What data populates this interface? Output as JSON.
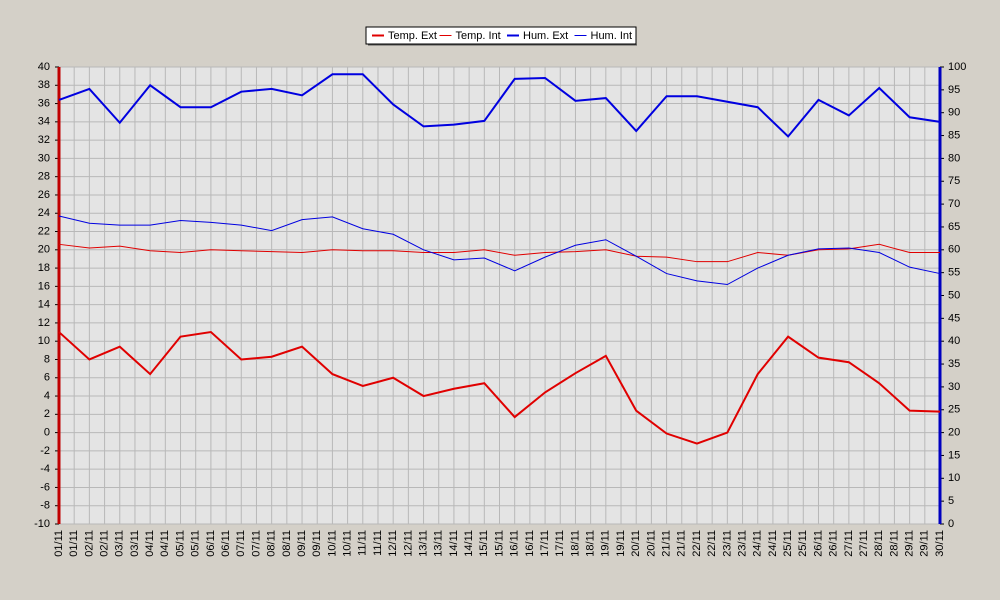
{
  "chart_data": {
    "type": "line",
    "categories": [
      "01/11",
      "02/11",
      "03/11",
      "04/11",
      "05/11",
      "06/11",
      "07/11",
      "08/11",
      "09/11",
      "10/11",
      "11/11",
      "12/11",
      "13/11",
      "14/11",
      "15/11",
      "16/11",
      "17/11",
      "18/11",
      "19/11",
      "20/11",
      "21/11",
      "22/11",
      "23/11",
      "24/11",
      "25/11",
      "26/11",
      "27/11",
      "28/11",
      "29/11",
      "30/11"
    ],
    "xtick_labels": [
      "01/11",
      "01/11",
      "02/11",
      "02/11",
      "03/11",
      "03/11",
      "04/11",
      "04/11",
      "05/11",
      "05/11",
      "06/11",
      "06/11",
      "07/11",
      "07/11",
      "08/11",
      "08/11",
      "09/11",
      "09/11",
      "10/11",
      "10/11",
      "11/11",
      "11/11",
      "12/11",
      "12/11",
      "13/11",
      "13/11",
      "14/11",
      "14/11",
      "15/11",
      "15/11",
      "16/11",
      "16/11",
      "17/11",
      "17/11",
      "18/11",
      "18/11",
      "19/11",
      "19/11",
      "20/11",
      "20/11",
      "21/11",
      "21/11",
      "22/11",
      "22/11",
      "23/11",
      "23/11",
      "24/11",
      "24/11",
      "25/11",
      "25/11",
      "26/11",
      "26/11",
      "27/11",
      "27/11",
      "28/11",
      "28/11",
      "29/11",
      "29/11",
      "30/11"
    ],
    "series": [
      {
        "name": "Temp. Ext",
        "color": "#e00000",
        "width": 2,
        "values": [
          11,
          8,
          9.4,
          6.4,
          10.5,
          11,
          8,
          8.3,
          9.4,
          6.4,
          5.1,
          6,
          4,
          4.8,
          5.4,
          1.7,
          4.4,
          6.5,
          8.4,
          2.4,
          -0.1,
          -1.2,
          0,
          6.4,
          10.5,
          8.2,
          7.7,
          5.4,
          2.4,
          2.3
        ]
      },
      {
        "name": "Temp. Int",
        "color": "#e00000",
        "width": 1,
        "values": [
          20.6,
          20.2,
          20.4,
          19.9,
          19.7,
          20,
          19.9,
          19.8,
          19.7,
          20,
          19.9,
          19.9,
          19.7,
          19.7,
          20,
          19.4,
          19.7,
          19.8,
          20,
          19.3,
          19.2,
          18.7,
          18.7,
          19.7,
          19.4,
          20,
          20.1,
          20.6,
          19.7,
          19.7
        ]
      },
      {
        "name": "Hum. Ext",
        "color": "#0000e0",
        "width": 2,
        "axis": "y2",
        "values": [
          92.8,
          95.2,
          87.8,
          96,
          91.2,
          91.2,
          94.6,
          95.2,
          93.8,
          98.4,
          98.4,
          91.8,
          87,
          87.4,
          88.2,
          97.4,
          97.6,
          92.6,
          93.2,
          86,
          93.6,
          93.6,
          92.4,
          91.2,
          84.8,
          92.8,
          89.4,
          95.4,
          89,
          88
        ]
      },
      {
        "name": "Hum. Int",
        "color": "#0000e0",
        "width": 1,
        "axis": "y2",
        "values": [
          67.4,
          65.8,
          65.4,
          65.4,
          66.4,
          66,
          65.4,
          64.2,
          66.6,
          67.2,
          64.6,
          63.4,
          60,
          57.8,
          58.2,
          55.4,
          58.4,
          61,
          62.2,
          58.6,
          54.8,
          53.2,
          52.4,
          56,
          58.8,
          60.2,
          60.4,
          59.4,
          56.2,
          54.8
        ]
      }
    ],
    "ylim": [
      -10,
      40
    ],
    "yticks": [
      -10,
      -8,
      -6,
      -4,
      -2,
      0,
      2,
      4,
      6,
      8,
      10,
      12,
      14,
      16,
      18,
      20,
      22,
      24,
      26,
      28,
      30,
      32,
      34,
      36,
      38,
      40
    ],
    "y2lim": [
      0,
      100
    ],
    "y2ticks": [
      0,
      5,
      10,
      15,
      20,
      25,
      30,
      35,
      40,
      45,
      50,
      55,
      60,
      65,
      70,
      75,
      80,
      85,
      90,
      95,
      100
    ],
    "grid": true,
    "legend": "top"
  }
}
